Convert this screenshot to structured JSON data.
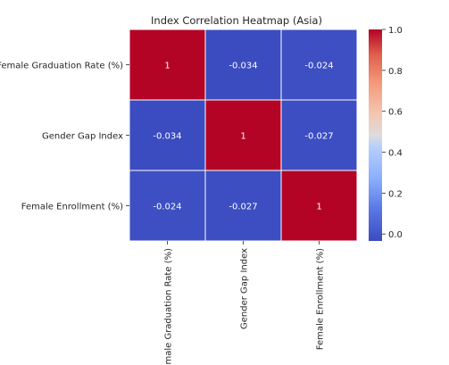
{
  "chart_data": {
    "type": "heatmap",
    "title": "Index Correlation Heatmap (Asia)",
    "row_labels": [
      "Female Graduation Rate (%)",
      "Gender Gap Index",
      "Female Enrollment (%)"
    ],
    "col_labels": [
      "Female Graduation Rate (%)",
      "Gender Gap Index",
      "Female Enrollment (%)"
    ],
    "values": [
      [
        1,
        -0.034,
        -0.024
      ],
      [
        -0.034,
        1,
        -0.027
      ],
      [
        -0.024,
        -0.027,
        1
      ]
    ],
    "annotations": [
      [
        "1",
        "-0.034",
        "-0.024"
      ],
      [
        "-0.034",
        "1",
        "-0.027"
      ],
      [
        "-0.024",
        "-0.027",
        "1"
      ]
    ],
    "colormap": "coolwarm",
    "vmin": -0.034,
    "vmax": 1.0,
    "colorbar_ticks": [
      1.0,
      0.8,
      0.6,
      0.4,
      0.2,
      0.0
    ],
    "colorbar_tick_labels": [
      "1.0",
      "0.8",
      "0.6",
      "0.4",
      "0.2",
      "0.0"
    ],
    "grid_line_color": "#ffffff"
  }
}
